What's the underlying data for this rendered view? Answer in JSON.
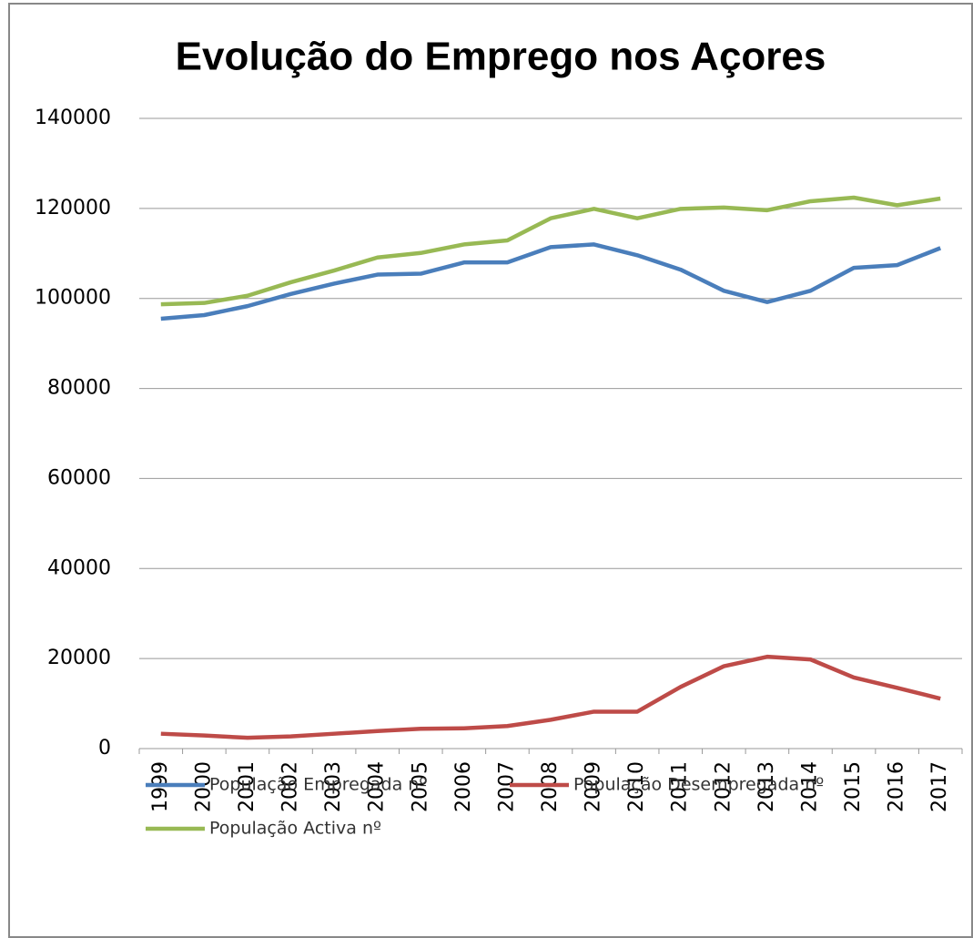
{
  "chart_data": {
    "type": "line",
    "title": "Evolução do Emprego nos Açores",
    "categories": [
      "1999",
      "2000",
      "2001",
      "2002",
      "2003",
      "2004",
      "2005",
      "2006",
      "2007",
      "2008",
      "2009",
      "2010",
      "2011",
      "2012",
      "2013",
      "2014",
      "2015",
      "2016",
      "2017"
    ],
    "series": [
      {
        "name": "População Empregada nº",
        "color": "#4a7ebb",
        "values": [
          95500,
          96300,
          98300,
          101000,
          103300,
          105300,
          105500,
          108000,
          108000,
          111400,
          112000,
          109600,
          106400,
          101700,
          99200,
          101700,
          106800,
          107400,
          111200
        ]
      },
      {
        "name": "População Desempregada nº",
        "color": "#be4b48",
        "values": [
          3300,
          2900,
          2400,
          2700,
          3300,
          3900,
          4400,
          4500,
          5000,
          6400,
          8200,
          8200,
          13700,
          18300,
          20400,
          19800,
          15800,
          13500,
          11100
        ]
      },
      {
        "name": "População Activa nº",
        "color": "#98b954",
        "values": [
          98700,
          99000,
          100600,
          103600,
          106200,
          109100,
          110100,
          112000,
          112900,
          117800,
          119900,
          117800,
          119900,
          120200,
          119600,
          121600,
          122400,
          120700,
          122200
        ]
      }
    ],
    "ylim": [
      0,
      140000
    ],
    "yticks": [
      0,
      20000,
      40000,
      60000,
      80000,
      100000,
      120000,
      140000
    ],
    "grid": true
  }
}
